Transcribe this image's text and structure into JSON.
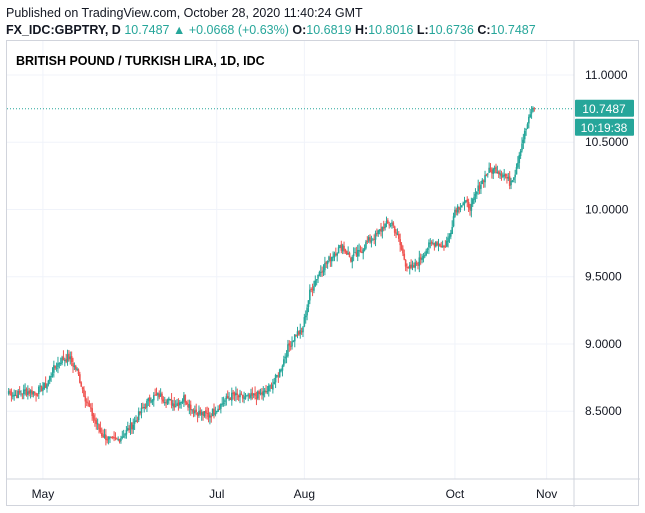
{
  "header": {
    "published": "Published on TradingView.com, October 28, 2020 11:40:24 GMT",
    "symbol": "FX_IDC:GBPTRY, D",
    "last": "10.7487",
    "change": "▲ +0.0668 (+0.63%)",
    "o_label": "O:",
    "o_value": "10.6819",
    "h_label": "H:",
    "h_value": "10.8016",
    "l_label": "L:",
    "l_value": "10.6736",
    "c_label": "C:",
    "c_value": "10.7487"
  },
  "colors": {
    "up": "#26a69a",
    "down": "#ef5350",
    "grid": "#f0f3fa",
    "axis": "#d1d4dc"
  },
  "chart_data": {
    "type": "candlestick",
    "title": "BRITISH POUND / TURKISH LIRA, 1D, IDC",
    "ylim": [
      8.0,
      11.1
    ],
    "y_ticks": [
      "11.0000",
      "10.5000",
      "10.0000",
      "9.5000",
      "9.0000",
      "8.5000"
    ],
    "y_tick_values": [
      11.0,
      10.5,
      10.0,
      9.5,
      9.0,
      8.5
    ],
    "x_ticks": [
      "May",
      "Jul",
      "Aug",
      "Oct",
      "Nov"
    ],
    "x_tick_index": [
      25,
      152,
      216,
      326,
      393
    ],
    "price_label": "10.7487",
    "countdown_label": "10:19:38",
    "last_price": 10.7487,
    "anchors": [
      [
        0,
        8.65
      ],
      [
        5,
        8.62
      ],
      [
        12,
        8.65
      ],
      [
        20,
        8.64
      ],
      [
        28,
        8.7
      ],
      [
        32,
        8.8
      ],
      [
        38,
        8.88
      ],
      [
        44,
        8.9
      ],
      [
        50,
        8.8
      ],
      [
        56,
        8.6
      ],
      [
        62,
        8.45
      ],
      [
        68,
        8.33
      ],
      [
        75,
        8.28
      ],
      [
        80,
        8.29
      ],
      [
        86,
        8.35
      ],
      [
        92,
        8.42
      ],
      [
        98,
        8.52
      ],
      [
        104,
        8.6
      ],
      [
        110,
        8.62
      ],
      [
        116,
        8.58
      ],
      [
        122,
        8.55
      ],
      [
        128,
        8.6
      ],
      [
        134,
        8.52
      ],
      [
        140,
        8.48
      ],
      [
        146,
        8.47
      ],
      [
        152,
        8.52
      ],
      [
        158,
        8.58
      ],
      [
        164,
        8.62
      ],
      [
        170,
        8.6
      ],
      [
        176,
        8.6
      ],
      [
        182,
        8.62
      ],
      [
        188,
        8.64
      ],
      [
        194,
        8.72
      ],
      [
        198,
        8.8
      ],
      [
        204,
        8.97
      ],
      [
        210,
        9.08
      ],
      [
        214,
        9.08
      ],
      [
        220,
        9.38
      ],
      [
        226,
        9.52
      ],
      [
        232,
        9.6
      ],
      [
        238,
        9.68
      ],
      [
        244,
        9.73
      ],
      [
        250,
        9.63
      ],
      [
        256,
        9.68
      ],
      [
        262,
        9.76
      ],
      [
        268,
        9.8
      ],
      [
        274,
        9.88
      ],
      [
        280,
        9.9
      ],
      [
        284,
        9.8
      ],
      [
        290,
        9.6
      ],
      [
        294,
        9.55
      ],
      [
        300,
        9.62
      ],
      [
        306,
        9.72
      ],
      [
        312,
        9.76
      ],
      [
        318,
        9.72
      ],
      [
        322,
        9.8
      ],
      [
        326,
        10.0
      ],
      [
        332,
        10.05
      ],
      [
        338,
        10.02
      ],
      [
        344,
        10.18
      ],
      [
        350,
        10.28
      ],
      [
        356,
        10.3
      ],
      [
        362,
        10.26
      ],
      [
        366,
        10.2
      ],
      [
        370,
        10.28
      ],
      [
        374,
        10.46
      ],
      [
        378,
        10.6
      ],
      [
        382,
        10.73
      ],
      [
        384,
        10.75
      ]
    ]
  }
}
